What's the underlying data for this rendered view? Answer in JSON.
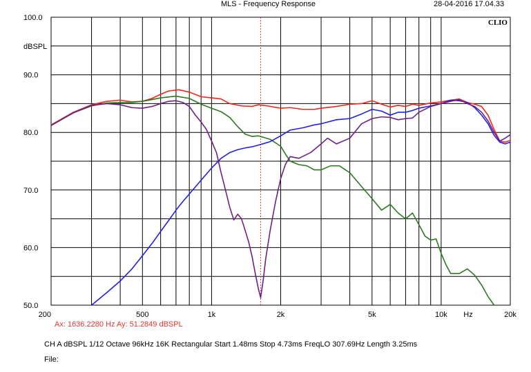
{
  "header": {
    "title": "MLS - Frequency Response",
    "datetime": "28-04-2016 17.04.33"
  },
  "logo": {
    "text": "CLIO"
  },
  "cursor": {
    "readout": "Ax: 1636.2280 Hz  Ay: 51.2849 dBSPL",
    "x_hz": 1636.228,
    "y_db": 51.2849
  },
  "settings": {
    "line": "CH A  dBSPL  1/12 Octave  96kHz  16K  Rectangular  Start 1.48ms  Stop 4.73ms  FreqLO 307.69Hz  Length 3.25ms"
  },
  "file": {
    "label": "File:"
  },
  "colors": {
    "red": "#f02418",
    "green": "#2a7a1e",
    "blue": "#1f1fe6",
    "purple": "#6e1f86",
    "cursor": "#e8322d",
    "grid": "#000000"
  },
  "chart_data": {
    "type": "line",
    "title": "MLS - Frequency Response",
    "xscale": "log",
    "xlim": [
      200,
      20000
    ],
    "ylim": [
      50,
      100
    ],
    "xunit_label": "Hz",
    "yunit_label": "dBSPL",
    "y_tick_labels": [
      "50.0",
      "60.0",
      "70.0",
      "80.0",
      "90.0",
      "100.0"
    ],
    "y_tick_values": [
      50,
      60,
      70,
      80,
      90,
      100
    ],
    "x_tick_labels": [
      "200",
      "500",
      "1k",
      "2k",
      "5k",
      "10k",
      "20k"
    ],
    "x_tick_values": [
      200,
      500,
      1000,
      2000,
      5000,
      10000,
      20000
    ],
    "grid": true,
    "series": [
      {
        "color_key": "red",
        "points": [
          [
            200,
            81.3
          ],
          [
            250,
            83.5
          ],
          [
            300,
            84.8
          ],
          [
            350,
            85.4
          ],
          [
            400,
            85.6
          ],
          [
            450,
            85.3
          ],
          [
            500,
            85.4
          ],
          [
            550,
            85.9
          ],
          [
            600,
            86.6
          ],
          [
            650,
            87.2
          ],
          [
            720,
            87.4
          ],
          [
            800,
            87.0
          ],
          [
            900,
            86.2
          ],
          [
            1000,
            86.0
          ],
          [
            1100,
            85.8
          ],
          [
            1200,
            85.0
          ],
          [
            1350,
            84.6
          ],
          [
            1500,
            84.5
          ],
          [
            1600,
            84.8
          ],
          [
            1750,
            84.6
          ],
          [
            2000,
            84.2
          ],
          [
            2200,
            84.3
          ],
          [
            2500,
            84.0
          ],
          [
            2800,
            84.0
          ],
          [
            3000,
            84.2
          ],
          [
            3500,
            84.5
          ],
          [
            4000,
            84.9
          ],
          [
            4500,
            85.0
          ],
          [
            5000,
            85.5
          ],
          [
            5500,
            84.9
          ],
          [
            6000,
            84.4
          ],
          [
            6500,
            84.7
          ],
          [
            7000,
            84.5
          ],
          [
            7500,
            84.9
          ],
          [
            8000,
            84.7
          ],
          [
            9000,
            85.1
          ],
          [
            10000,
            85.3
          ],
          [
            11000,
            85.6
          ],
          [
            12000,
            85.8
          ],
          [
            13000,
            85.2
          ],
          [
            14000,
            84.9
          ],
          [
            15000,
            84.5
          ],
          [
            16000,
            83.0
          ],
          [
            17000,
            80.5
          ],
          [
            18000,
            78.5
          ],
          [
            19000,
            78.3
          ],
          [
            20000,
            78.6
          ]
        ]
      },
      {
        "color_key": "green",
        "points": [
          [
            200,
            81.2
          ],
          [
            250,
            83.4
          ],
          [
            300,
            84.6
          ],
          [
            350,
            85.1
          ],
          [
            400,
            85.2
          ],
          [
            450,
            85.2
          ],
          [
            500,
            85.4
          ],
          [
            550,
            85.7
          ],
          [
            600,
            86.0
          ],
          [
            700,
            86.3
          ],
          [
            800,
            85.9
          ],
          [
            900,
            84.9
          ],
          [
            1000,
            84.2
          ],
          [
            1100,
            83.6
          ],
          [
            1200,
            82.6
          ],
          [
            1300,
            81.0
          ],
          [
            1400,
            79.7
          ],
          [
            1500,
            79.3
          ],
          [
            1600,
            79.4
          ],
          [
            1800,
            78.8
          ],
          [
            2000,
            77.6
          ],
          [
            2100,
            76.2
          ],
          [
            2200,
            75.0
          ],
          [
            2400,
            74.4
          ],
          [
            2600,
            74.2
          ],
          [
            2800,
            73.5
          ],
          [
            3000,
            73.5
          ],
          [
            3300,
            74.2
          ],
          [
            3600,
            74.2
          ],
          [
            4000,
            73.0
          ],
          [
            4500,
            70.6
          ],
          [
            5000,
            68.5
          ],
          [
            5500,
            66.5
          ],
          [
            6000,
            67.5
          ],
          [
            6500,
            66.0
          ],
          [
            7000,
            65.0
          ],
          [
            7500,
            66.0
          ],
          [
            8000,
            64.0
          ],
          [
            8500,
            62.0
          ],
          [
            9000,
            61.3
          ],
          [
            9500,
            61.5
          ],
          [
            10000,
            59.0
          ],
          [
            10500,
            57.0
          ],
          [
            11000,
            55.5
          ],
          [
            12000,
            55.5
          ],
          [
            13000,
            56.3
          ],
          [
            14000,
            55.2
          ],
          [
            15000,
            53.5
          ],
          [
            16000,
            51.5
          ],
          [
            17000,
            50.0
          ]
        ]
      },
      {
        "color_key": "blue",
        "points": [
          [
            300,
            50.0
          ],
          [
            350,
            52.2
          ],
          [
            400,
            54.2
          ],
          [
            450,
            56.3
          ],
          [
            500,
            58.6
          ],
          [
            550,
            60.7
          ],
          [
            600,
            62.8
          ],
          [
            650,
            64.7
          ],
          [
            700,
            66.5
          ],
          [
            750,
            68.0
          ],
          [
            800,
            69.3
          ],
          [
            900,
            71.7
          ],
          [
            1000,
            73.8
          ],
          [
            1100,
            75.5
          ],
          [
            1200,
            76.5
          ],
          [
            1300,
            77.0
          ],
          [
            1400,
            77.3
          ],
          [
            1500,
            77.5
          ],
          [
            1600,
            77.8
          ],
          [
            1700,
            78.1
          ],
          [
            1800,
            78.4
          ],
          [
            2000,
            79.4
          ],
          [
            2200,
            80.4
          ],
          [
            2500,
            80.8
          ],
          [
            2800,
            81.3
          ],
          [
            3000,
            81.5
          ],
          [
            3500,
            82.2
          ],
          [
            4000,
            82.4
          ],
          [
            4500,
            83.2
          ],
          [
            5000,
            84.0
          ],
          [
            5500,
            83.7
          ],
          [
            6000,
            83.0
          ],
          [
            6500,
            83.5
          ],
          [
            7000,
            83.5
          ],
          [
            7500,
            83.8
          ],
          [
            8000,
            84.2
          ],
          [
            9000,
            84.6
          ],
          [
            10000,
            85.0
          ],
          [
            11000,
            85.6
          ],
          [
            12000,
            85.5
          ],
          [
            13000,
            85.2
          ],
          [
            14000,
            84.3
          ],
          [
            15000,
            83.0
          ],
          [
            16000,
            81.5
          ],
          [
            17000,
            79.5
          ],
          [
            18000,
            78.3
          ],
          [
            19000,
            78.0
          ],
          [
            20000,
            78.3
          ]
        ]
      },
      {
        "color_key": "purple",
        "points": [
          [
            200,
            81.2
          ],
          [
            250,
            83.4
          ],
          [
            300,
            84.7
          ],
          [
            350,
            85.0
          ],
          [
            400,
            84.8
          ],
          [
            450,
            84.3
          ],
          [
            500,
            84.2
          ],
          [
            550,
            84.5
          ],
          [
            600,
            85.0
          ],
          [
            650,
            85.4
          ],
          [
            700,
            85.5
          ],
          [
            750,
            85.2
          ],
          [
            800,
            84.5
          ],
          [
            850,
            83.0
          ],
          [
            900,
            81.8
          ],
          [
            950,
            80.5
          ],
          [
            1000,
            78.5
          ],
          [
            1050,
            76.5
          ],
          [
            1100,
            73.0
          ],
          [
            1150,
            70.0
          ],
          [
            1200,
            67.0
          ],
          [
            1250,
            64.8
          ],
          [
            1300,
            65.8
          ],
          [
            1350,
            65.0
          ],
          [
            1400,
            63.0
          ],
          [
            1450,
            61.0
          ],
          [
            1500,
            58.5
          ],
          [
            1550,
            55.5
          ],
          [
            1600,
            52.8
          ],
          [
            1636,
            51.3
          ],
          [
            1680,
            54.5
          ],
          [
            1720,
            58.0
          ],
          [
            1800,
            63.0
          ],
          [
            1900,
            68.0
          ],
          [
            2000,
            72.0
          ],
          [
            2100,
            74.5
          ],
          [
            2200,
            75.8
          ],
          [
            2400,
            75.5
          ],
          [
            2700,
            76.5
          ],
          [
            3000,
            78.0
          ],
          [
            3200,
            79.0
          ],
          [
            3500,
            78.0
          ],
          [
            4000,
            79.0
          ],
          [
            4500,
            81.5
          ],
          [
            5000,
            82.4
          ],
          [
            5500,
            82.7
          ],
          [
            6000,
            82.6
          ],
          [
            6500,
            82.2
          ],
          [
            7000,
            82.4
          ],
          [
            7500,
            82.5
          ],
          [
            8000,
            83.5
          ],
          [
            9000,
            84.5
          ],
          [
            10000,
            85.0
          ],
          [
            11000,
            85.4
          ],
          [
            12000,
            85.7
          ],
          [
            13000,
            85.0
          ],
          [
            14000,
            84.5
          ],
          [
            15000,
            83.5
          ],
          [
            16000,
            82.0
          ],
          [
            17000,
            80.0
          ],
          [
            18000,
            78.5
          ],
          [
            19000,
            79.0
          ],
          [
            20000,
            79.6
          ]
        ]
      }
    ]
  }
}
